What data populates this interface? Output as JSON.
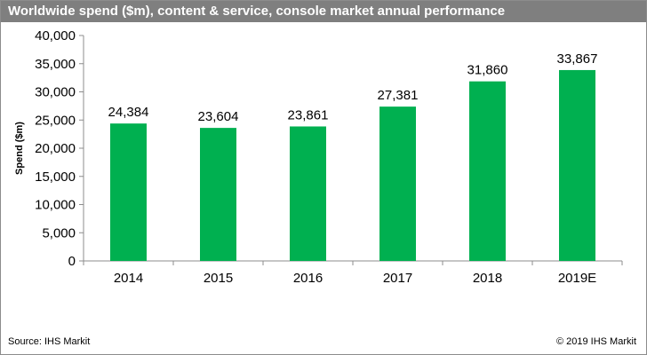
{
  "title": "Worldwide spend ($m), content & service, console market annual performance",
  "source": "Source: IHS Markit",
  "copyright": "© 2019 IHS Markit",
  "colors": {
    "bar": "#00b050",
    "title_bg": "#7f7f7f",
    "title_text": "#ffffff",
    "axis": "#8c8c8c"
  },
  "chart_data": {
    "type": "bar",
    "categories": [
      "2014",
      "2015",
      "2016",
      "2017",
      "2018",
      "2019E"
    ],
    "values": [
      24384,
      23604,
      23861,
      27381,
      31860,
      33867
    ],
    "value_labels": [
      "24,384",
      "23,604",
      "23,861",
      "27,381",
      "31,860",
      "33,867"
    ],
    "ylabel": "Spend ($m)",
    "xlabel": "",
    "ylim": [
      0,
      40000
    ],
    "yticks": [
      0,
      5000,
      10000,
      15000,
      20000,
      25000,
      30000,
      35000,
      40000
    ],
    "ytick_labels": [
      "0",
      "5,000",
      "10,000",
      "15,000",
      "20,000",
      "25,000",
      "30,000",
      "35,000",
      "40,000"
    ],
    "grid": false,
    "legend": "none"
  }
}
